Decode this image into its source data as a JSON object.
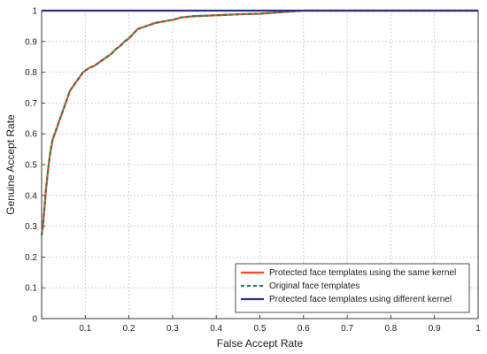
{
  "chart_data": {
    "type": "line",
    "title": "",
    "xlabel": "False Accept Rate",
    "ylabel": "Genuine Accept Rate",
    "xlim": [
      0,
      1
    ],
    "ylim": [
      0,
      1
    ],
    "x_ticks": [
      "0.1",
      "0.2",
      "0.3",
      "0.4",
      "0.5",
      "0.6",
      "0.7",
      "0.8",
      "0.9",
      "1"
    ],
    "x_tick_values": [
      0.1,
      0.2,
      0.3,
      0.4,
      0.5,
      0.6,
      0.7,
      0.8,
      0.9,
      1.0
    ],
    "y_ticks": [
      "0",
      "0.1",
      "0.2",
      "0.3",
      "0.4",
      "0.5",
      "0.6",
      "0.7",
      "0.8",
      "0.9",
      "1"
    ],
    "y_tick_values": [
      0,
      0.1,
      0.2,
      0.3,
      0.4,
      0.5,
      0.6,
      0.7,
      0.8,
      0.9,
      1.0
    ],
    "grid": true,
    "legend_position": "bottom-right",
    "series": [
      {
        "name": "Protected face templates using the same kernel",
        "color": "#ff4a1c",
        "dash": "solid",
        "x": [
          0,
          0.003,
          0.006,
          0.01,
          0.013,
          0.017,
          0.02,
          0.025,
          0.03,
          0.035,
          0.04,
          0.045,
          0.05,
          0.055,
          0.06,
          0.065,
          0.07,
          0.075,
          0.08,
          0.085,
          0.09,
          0.095,
          0.1,
          0.11,
          0.12,
          0.13,
          0.14,
          0.15,
          0.16,
          0.17,
          0.18,
          0.19,
          0.2,
          0.21,
          0.22,
          0.23,
          0.24,
          0.25,
          0.26,
          0.28,
          0.3,
          0.32,
          0.35,
          0.4,
          0.45,
          0.5,
          0.55,
          0.6,
          0.62,
          1.0
        ],
        "y": [
          0.27,
          0.3,
          0.35,
          0.42,
          0.46,
          0.51,
          0.54,
          0.58,
          0.6,
          0.62,
          0.64,
          0.66,
          0.68,
          0.7,
          0.72,
          0.74,
          0.75,
          0.76,
          0.77,
          0.78,
          0.79,
          0.8,
          0.805,
          0.815,
          0.82,
          0.83,
          0.84,
          0.85,
          0.86,
          0.875,
          0.885,
          0.9,
          0.91,
          0.925,
          0.94,
          0.945,
          0.95,
          0.955,
          0.96,
          0.965,
          0.97,
          0.978,
          0.982,
          0.985,
          0.988,
          0.99,
          0.995,
          1.0,
          1.0,
          1.0
        ]
      },
      {
        "name": "Original face templates",
        "color": "#2e7d5b",
        "dash": "dashed",
        "x": [
          0,
          0.003,
          0.006,
          0.01,
          0.013,
          0.017,
          0.02,
          0.025,
          0.03,
          0.035,
          0.04,
          0.045,
          0.05,
          0.055,
          0.06,
          0.065,
          0.07,
          0.075,
          0.08,
          0.085,
          0.09,
          0.095,
          0.1,
          0.11,
          0.12,
          0.13,
          0.14,
          0.15,
          0.16,
          0.17,
          0.18,
          0.19,
          0.2,
          0.21,
          0.22,
          0.23,
          0.24,
          0.25,
          0.26,
          0.28,
          0.3,
          0.32,
          0.35,
          0.4,
          0.45,
          0.5,
          0.55,
          0.6,
          0.62,
          1.0
        ],
        "y": [
          0.27,
          0.3,
          0.35,
          0.42,
          0.46,
          0.51,
          0.54,
          0.58,
          0.6,
          0.62,
          0.64,
          0.66,
          0.68,
          0.7,
          0.72,
          0.74,
          0.75,
          0.76,
          0.77,
          0.78,
          0.79,
          0.8,
          0.805,
          0.815,
          0.82,
          0.83,
          0.84,
          0.85,
          0.86,
          0.875,
          0.885,
          0.9,
          0.91,
          0.925,
          0.94,
          0.945,
          0.95,
          0.955,
          0.96,
          0.965,
          0.97,
          0.978,
          0.982,
          0.985,
          0.988,
          0.99,
          0.995,
          1.0,
          1.0,
          1.0
        ]
      },
      {
        "name": "Protected face templates using different kernel",
        "color": "#2b2f8f",
        "dash": "solid",
        "x": [
          0,
          1.0
        ],
        "y": [
          1.0,
          1.0
        ]
      }
    ]
  }
}
